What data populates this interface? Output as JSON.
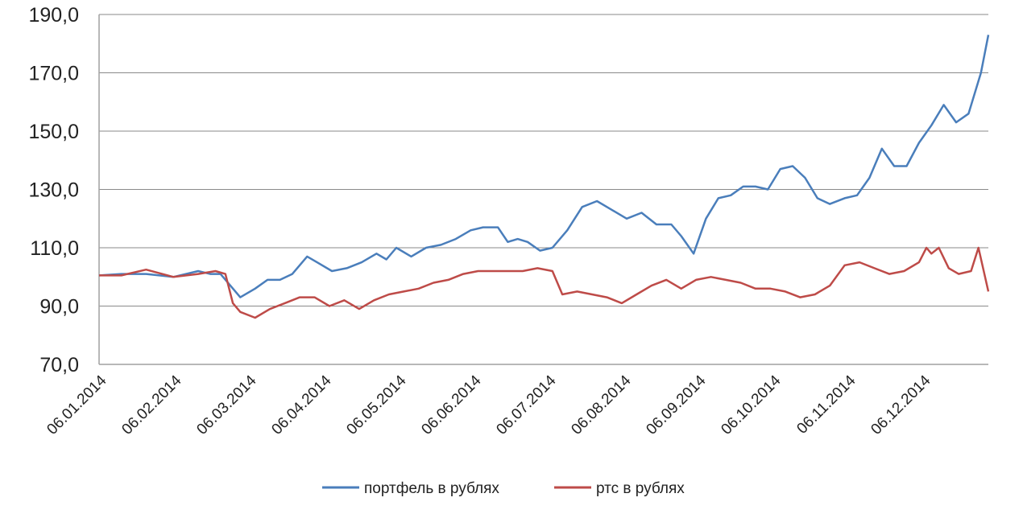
{
  "chart_data": {
    "type": "line",
    "title": "",
    "xlabel": "",
    "ylabel": "",
    "ylim": [
      70,
      190
    ],
    "yticks": [
      "70,0",
      "90,0",
      "110,0",
      "130,0",
      "150,0",
      "170,0",
      "190,0"
    ],
    "ytick_values": [
      70,
      90,
      110,
      130,
      150,
      170,
      190
    ],
    "xticks": [
      "06.01.2014",
      "06.02.2014",
      "06.03.2014",
      "06.04.2014",
      "06.05.2014",
      "06.06.2014",
      "06.07.2014",
      "06.08.2014",
      "06.09.2014",
      "06.10.2014",
      "06.11.2014",
      "06.12.2014"
    ],
    "xlim": [
      "2014-01-06",
      "2014-12-31"
    ],
    "grid": "horizontal",
    "legend_position": "bottom",
    "series": [
      {
        "name": "портфель в рублях",
        "color": "#4a7ebb",
        "x": [
          "2014-01-06",
          "2014-01-15",
          "2014-01-25",
          "2014-02-05",
          "2014-02-15",
          "2014-02-20",
          "2014-02-24",
          "2014-02-28",
          "2014-03-04",
          "2014-03-10",
          "2014-03-15",
          "2014-03-20",
          "2014-03-25",
          "2014-03-31",
          "2014-04-04",
          "2014-04-10",
          "2014-04-16",
          "2014-04-22",
          "2014-04-28",
          "2014-05-02",
          "2014-05-06",
          "2014-05-12",
          "2014-05-18",
          "2014-05-24",
          "2014-05-30",
          "2014-06-05",
          "2014-06-10",
          "2014-06-16",
          "2014-06-20",
          "2014-06-24",
          "2014-06-28",
          "2014-07-03",
          "2014-07-08",
          "2014-07-14",
          "2014-07-20",
          "2014-07-26",
          "2014-08-01",
          "2014-08-07",
          "2014-08-13",
          "2014-08-19",
          "2014-08-25",
          "2014-08-29",
          "2014-09-03",
          "2014-09-08",
          "2014-09-13",
          "2014-09-18",
          "2014-09-23",
          "2014-09-28",
          "2014-10-03",
          "2014-10-08",
          "2014-10-13",
          "2014-10-18",
          "2014-10-23",
          "2014-10-28",
          "2014-11-03",
          "2014-11-08",
          "2014-11-13",
          "2014-11-18",
          "2014-11-23",
          "2014-11-28",
          "2014-12-03",
          "2014-12-08",
          "2014-12-13",
          "2014-12-18",
          "2014-12-23",
          "2014-12-28",
          "2014-12-31"
        ],
        "values": [
          100.5,
          101,
          101,
          100,
          102,
          101,
          101,
          97,
          93,
          96,
          99,
          99,
          101,
          107,
          105,
          102,
          103,
          105,
          108,
          106,
          110,
          107,
          110,
          111,
          113,
          116,
          117,
          117,
          112,
          113,
          112,
          109,
          110,
          116,
          124,
          126,
          123,
          120,
          122,
          118,
          118,
          114,
          108,
          120,
          127,
          128,
          131,
          131,
          130,
          137,
          138,
          134,
          127,
          125,
          127,
          128,
          134,
          144,
          138,
          138,
          146,
          152,
          159,
          153,
          156,
          170,
          183
        ]
      },
      {
        "name": "ртс в рублях",
        "color": "#be4b48",
        "x": [
          "2014-01-06",
          "2014-01-15",
          "2014-01-25",
          "2014-02-05",
          "2014-02-15",
          "2014-02-22",
          "2014-02-26",
          "2014-03-01",
          "2014-03-04",
          "2014-03-10",
          "2014-03-16",
          "2014-03-22",
          "2014-03-28",
          "2014-04-03",
          "2014-04-09",
          "2014-04-15",
          "2014-04-21",
          "2014-04-27",
          "2014-05-03",
          "2014-05-09",
          "2014-05-15",
          "2014-05-21",
          "2014-05-27",
          "2014-06-02",
          "2014-06-08",
          "2014-06-14",
          "2014-06-20",
          "2014-06-26",
          "2014-07-02",
          "2014-07-08",
          "2014-07-12",
          "2014-07-18",
          "2014-07-24",
          "2014-07-30",
          "2014-08-05",
          "2014-08-11",
          "2014-08-17",
          "2014-08-23",
          "2014-08-29",
          "2014-09-04",
          "2014-09-10",
          "2014-09-16",
          "2014-09-22",
          "2014-09-28",
          "2014-10-04",
          "2014-10-10",
          "2014-10-16",
          "2014-10-22",
          "2014-10-28",
          "2014-11-03",
          "2014-11-09",
          "2014-11-15",
          "2014-11-21",
          "2014-11-27",
          "2014-12-03",
          "2014-12-06",
          "2014-12-08",
          "2014-12-11",
          "2014-12-15",
          "2014-12-19",
          "2014-12-24",
          "2014-12-27",
          "2014-12-31"
        ],
        "values": [
          100.5,
          100.5,
          102.5,
          100,
          101,
          102,
          101,
          91,
          88,
          86,
          89,
          91,
          93,
          93,
          90,
          92,
          89,
          92,
          94,
          95,
          96,
          98,
          99,
          101,
          102,
          102,
          102,
          102,
          103,
          102,
          94,
          95,
          94,
          93,
          91,
          94,
          97,
          99,
          96,
          99,
          100,
          99,
          98,
          96,
          96,
          95,
          93,
          94,
          97,
          104,
          105,
          103,
          101,
          102,
          105,
          110,
          108,
          110,
          103,
          101,
          102,
          110,
          95
        ]
      }
    ]
  }
}
